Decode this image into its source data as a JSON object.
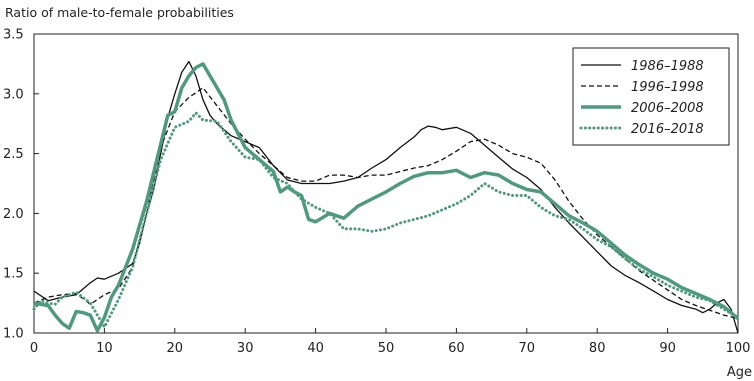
{
  "chart_data": {
    "type": "line",
    "ylabel": "Ratio of male-to-female probabilities",
    "xlabel": "Age",
    "xlim": [
      0,
      100
    ],
    "ylim": [
      1.0,
      3.5
    ],
    "x_ticks": [
      0,
      10,
      20,
      30,
      40,
      50,
      60,
      70,
      80,
      90,
      100
    ],
    "y_ticks": [
      "1.0",
      "1.5",
      "2.0",
      "2.5",
      "3.0",
      "3.5"
    ],
    "grid": false,
    "legend_position": "top-right",
    "series": [
      {
        "name": "1986–1988",
        "color": "#111111",
        "style": "solid",
        "x": [
          0,
          2,
          4,
          6,
          8,
          9,
          10,
          12,
          14,
          15,
          16,
          17,
          18,
          19,
          20,
          21,
          22,
          23,
          24,
          25,
          26,
          28,
          30,
          32,
          34,
          36,
          38,
          40,
          42,
          44,
          46,
          48,
          50,
          52,
          54,
          55,
          56,
          57,
          58,
          60,
          62,
          64,
          66,
          68,
          70,
          72,
          74,
          76,
          78,
          80,
          82,
          84,
          86,
          88,
          90,
          92,
          94,
          95,
          96,
          97,
          98,
          99,
          100
        ],
        "y": [
          1.35,
          1.27,
          1.3,
          1.32,
          1.42,
          1.46,
          1.45,
          1.5,
          1.58,
          1.75,
          2.0,
          2.2,
          2.5,
          2.8,
          3.0,
          3.18,
          3.27,
          3.15,
          2.95,
          2.82,
          2.75,
          2.65,
          2.6,
          2.55,
          2.4,
          2.28,
          2.25,
          2.25,
          2.25,
          2.27,
          2.3,
          2.38,
          2.45,
          2.55,
          2.64,
          2.7,
          2.73,
          2.72,
          2.7,
          2.72,
          2.67,
          2.57,
          2.47,
          2.37,
          2.3,
          2.2,
          2.05,
          1.92,
          1.8,
          1.68,
          1.56,
          1.48,
          1.42,
          1.35,
          1.28,
          1.23,
          1.2,
          1.17,
          1.2,
          1.25,
          1.28,
          1.2,
          1.0
        ]
      },
      {
        "name": "1996–1998",
        "color": "#111111",
        "style": "dashed",
        "x": [
          0,
          2,
          4,
          6,
          8,
          10,
          12,
          14,
          16,
          18,
          20,
          22,
          24,
          26,
          28,
          30,
          32,
          34,
          36,
          38,
          40,
          42,
          44,
          46,
          48,
          50,
          52,
          54,
          56,
          58,
          60,
          62,
          64,
          66,
          68,
          70,
          72,
          74,
          76,
          78,
          80,
          82,
          84,
          86,
          88,
          90,
          92,
          94,
          96,
          98,
          100
        ],
        "y": [
          1.25,
          1.3,
          1.32,
          1.33,
          1.24,
          1.32,
          1.37,
          1.55,
          2.0,
          2.55,
          2.85,
          2.97,
          3.05,
          2.9,
          2.75,
          2.62,
          2.5,
          2.4,
          2.3,
          2.27,
          2.27,
          2.32,
          2.32,
          2.3,
          2.32,
          2.32,
          2.35,
          2.38,
          2.4,
          2.45,
          2.52,
          2.6,
          2.62,
          2.57,
          2.5,
          2.47,
          2.42,
          2.28,
          2.1,
          1.95,
          1.82,
          1.72,
          1.62,
          1.52,
          1.44,
          1.36,
          1.28,
          1.23,
          1.19,
          1.15,
          1.12
        ]
      },
      {
        "name": "2006–2008",
        "color": "#4e9a7e",
        "style": "thick",
        "x": [
          0,
          2,
          3,
          4,
          5,
          6,
          7,
          8,
          9,
          10,
          11,
          12,
          14,
          16,
          18,
          19,
          20,
          21,
          22,
          23,
          24,
          25,
          26,
          27,
          28,
          30,
          32,
          34,
          35,
          36,
          37,
          38,
          39,
          40,
          42,
          44,
          46,
          48,
          50,
          52,
          54,
          56,
          58,
          60,
          62,
          64,
          66,
          68,
          70,
          72,
          74,
          76,
          78,
          80,
          82,
          84,
          86,
          88,
          90,
          92,
          94,
          96,
          98,
          100
        ],
        "y": [
          1.25,
          1.23,
          1.15,
          1.08,
          1.04,
          1.18,
          1.17,
          1.15,
          1.02,
          1.13,
          1.3,
          1.4,
          1.7,
          2.1,
          2.58,
          2.82,
          2.85,
          3.05,
          3.15,
          3.22,
          3.25,
          3.15,
          3.05,
          2.95,
          2.78,
          2.55,
          2.45,
          2.35,
          2.18,
          2.22,
          2.18,
          2.15,
          1.95,
          1.93,
          2.0,
          1.96,
          2.06,
          2.12,
          2.18,
          2.25,
          2.31,
          2.34,
          2.34,
          2.36,
          2.3,
          2.34,
          2.32,
          2.25,
          2.2,
          2.18,
          2.08,
          1.98,
          1.92,
          1.85,
          1.75,
          1.65,
          1.57,
          1.5,
          1.45,
          1.38,
          1.33,
          1.28,
          1.22,
          1.12
        ]
      },
      {
        "name": "2016–2018",
        "color": "#4e9a7e",
        "style": "dotted",
        "x": [
          0,
          1,
          2,
          3,
          4,
          6,
          8,
          10,
          12,
          14,
          16,
          18,
          20,
          22,
          23,
          24,
          26,
          28,
          30,
          32,
          34,
          36,
          37,
          38,
          40,
          42,
          44,
          46,
          48,
          50,
          52,
          54,
          56,
          58,
          60,
          62,
          64,
          66,
          68,
          70,
          72,
          74,
          76,
          78,
          80,
          82,
          84,
          86,
          88,
          90,
          92,
          94,
          96,
          98,
          100
        ],
        "y": [
          1.2,
          1.27,
          1.25,
          1.24,
          1.3,
          1.34,
          1.25,
          1.05,
          1.28,
          1.55,
          2.0,
          2.45,
          2.72,
          2.77,
          2.84,
          2.78,
          2.77,
          2.6,
          2.47,
          2.45,
          2.3,
          2.25,
          2.18,
          2.12,
          2.05,
          2.0,
          1.87,
          1.87,
          1.85,
          1.87,
          1.92,
          1.95,
          1.98,
          2.03,
          2.08,
          2.15,
          2.25,
          2.18,
          2.15,
          2.15,
          2.05,
          1.98,
          1.95,
          1.87,
          1.78,
          1.72,
          1.62,
          1.53,
          1.47,
          1.4,
          1.35,
          1.3,
          1.27,
          1.2,
          1.13
        ]
      }
    ]
  }
}
